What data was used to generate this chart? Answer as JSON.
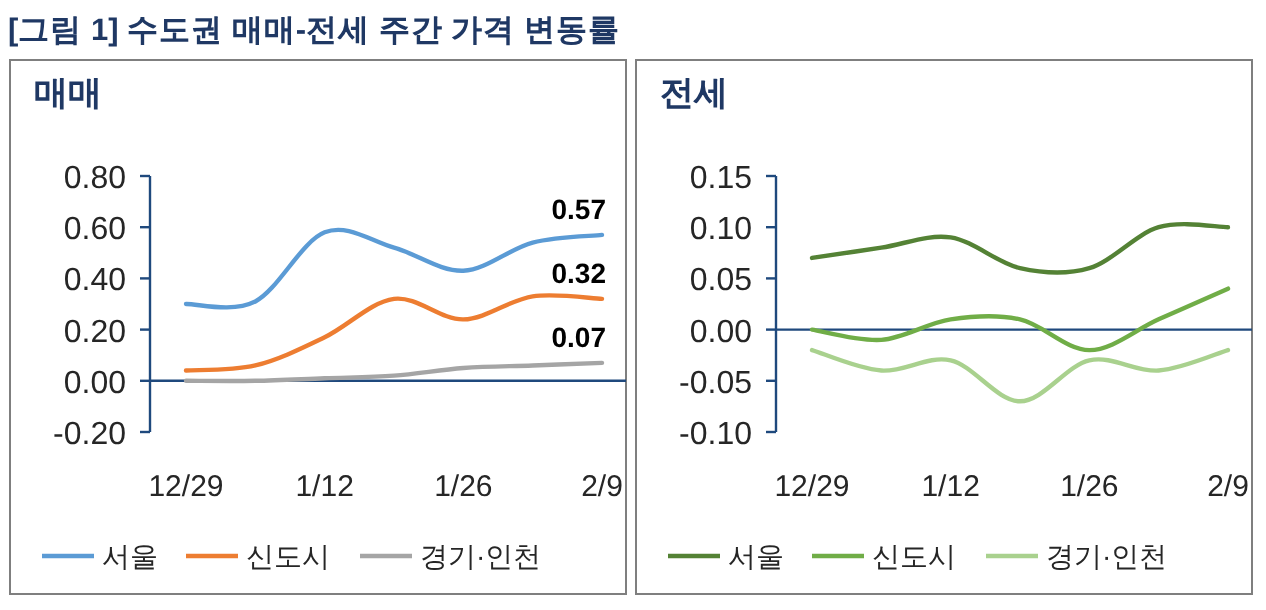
{
  "chart_data": [
    {
      "type": "line",
      "title": "매매",
      "annotations": [
        "[그림 1] 수도권 매매-전세 주간 가격 변동률",
        {
          "text": "0.57",
          "x": "2/9",
          "y": 0.57
        },
        {
          "text": "0.32",
          "x": "2/9",
          "y": 0.32
        },
        {
          "text": "0.07",
          "x": "2/9",
          "y": 0.07
        }
      ],
      "categories": [
        "12/29",
        null,
        "1/12",
        null,
        "1/26",
        null,
        "2/9"
      ],
      "series": [
        {
          "name": "서울",
          "color": "#5b9bd5",
          "values": [
            0.3,
            0.31,
            0.58,
            0.52,
            0.43,
            0.54,
            0.57
          ]
        },
        {
          "name": "신도시",
          "color": "#ed7d31",
          "values": [
            0.04,
            0.06,
            0.17,
            0.32,
            0.24,
            0.33,
            0.32
          ]
        },
        {
          "name": "경기·인천",
          "color": "#a5a5a5",
          "values": [
            0.0,
            0.0,
            0.01,
            0.02,
            0.05,
            0.06,
            0.07
          ]
        }
      ],
      "ylim": [
        -0.2,
        0.8
      ],
      "yticks": [
        {
          "value": -0.2,
          "label": "-0.20"
        },
        {
          "value": 0,
          "label": "0.00"
        },
        {
          "value": 0.2,
          "label": "0.20"
        },
        {
          "value": 0.4,
          "label": "0.40"
        },
        {
          "value": 0.6,
          "label": "0.60"
        },
        {
          "value": 0.8,
          "label": "0.80"
        }
      ],
      "ref_lines": [
        {
          "axis": "y",
          "value": 0,
          "color": "#1f497d"
        }
      ],
      "grid": false,
      "legend": "bottom"
    },
    {
      "type": "line",
      "title": "전세",
      "categories": [
        "12/29",
        null,
        "1/12",
        null,
        "1/26",
        null,
        "2/9"
      ],
      "series": [
        {
          "name": "서울",
          "color": "#548235",
          "values": [
            0.07,
            0.08,
            0.09,
            0.06,
            0.06,
            0.1,
            0.1
          ]
        },
        {
          "name": "신도시",
          "color": "#70ad47",
          "values": [
            0.0,
            -0.01,
            0.01,
            0.01,
            -0.02,
            0.01,
            0.04
          ]
        },
        {
          "name": "경기·인천",
          "color": "#a9d18e",
          "values": [
            -0.02,
            -0.04,
            -0.03,
            -0.07,
            -0.03,
            -0.04,
            -0.02
          ]
        }
      ],
      "ylim": [
        -0.1,
        0.15
      ],
      "yticks": [
        {
          "value": -0.1,
          "label": "-0.10"
        },
        {
          "value": -0.05,
          "label": "-0.05"
        },
        {
          "value": 0,
          "label": "0.00"
        },
        {
          "value": 0.05,
          "label": "0.05"
        },
        {
          "value": 0.1,
          "label": "0.10"
        },
        {
          "value": 0.15,
          "label": "0.15"
        }
      ],
      "ref_lines": [
        {
          "axis": "y",
          "value": 0,
          "color": "#1f497d"
        }
      ],
      "grid": false,
      "legend": "bottom"
    }
  ]
}
